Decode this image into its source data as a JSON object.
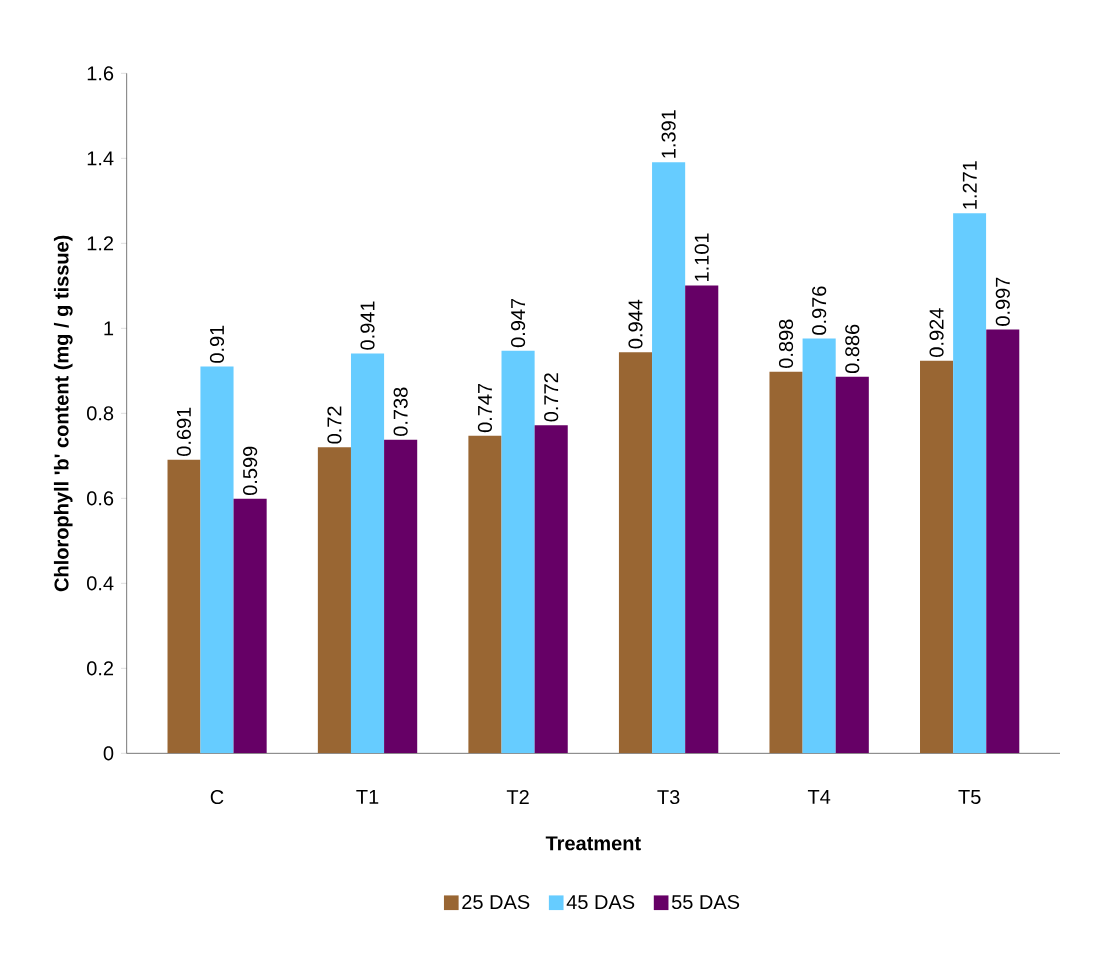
{
  "chart_data": {
    "type": "bar",
    "xlabel": "Treatment",
    "ylabel": "Chlorophyll 'b' content (mg / g tissue)",
    "categories": [
      "C",
      "T1",
      "T2",
      "T3",
      "T4",
      "T5"
    ],
    "series": [
      {
        "name": "25 DAS",
        "color": "#996633",
        "values": [
          0.691,
          0.72,
          0.747,
          0.944,
          0.898,
          0.924
        ]
      },
      {
        "name": "45 DAS",
        "color": "#66ccff",
        "values": [
          0.91,
          0.941,
          0.947,
          1.391,
          0.976,
          1.271
        ]
      },
      {
        "name": "55 DAS",
        "color": "#660066",
        "values": [
          0.599,
          0.738,
          0.772,
          1.101,
          0.886,
          0.997
        ]
      }
    ],
    "ylim": [
      0,
      1.6
    ],
    "yticks": [
      0,
      0.2,
      0.4,
      0.6,
      0.8,
      1,
      1.2,
      1.4,
      1.6
    ],
    "data_labels": true,
    "legend": "bottom",
    "grid": false
  }
}
